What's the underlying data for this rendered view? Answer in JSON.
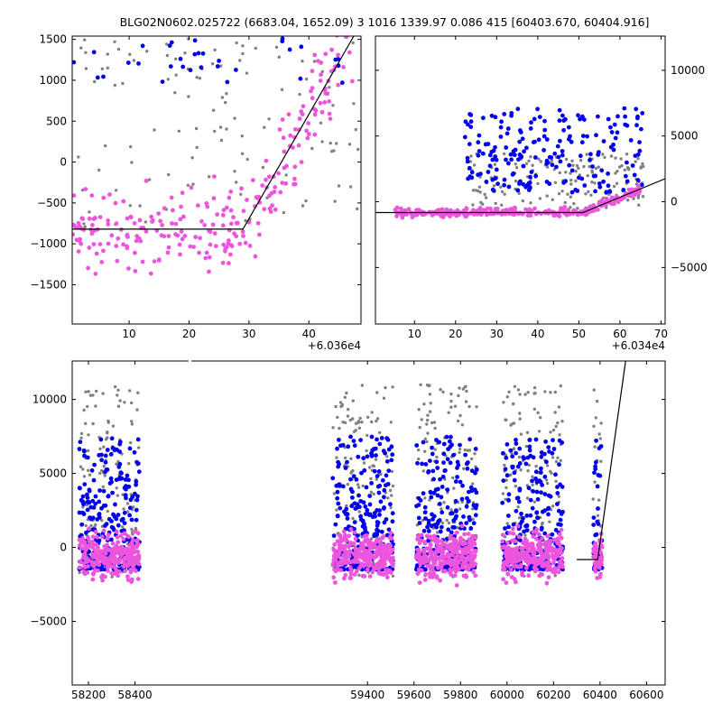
{
  "header": {
    "title": "BLG02N0602.025722 (6683.04, 1652.09)   3 1016 1339.97 0.086 415 [60403.670, 60404.916]"
  },
  "colors": {
    "blue": "#0000ee",
    "gray": "#808080",
    "pink": "#ee55dd",
    "model": "#000000"
  },
  "chart_data": [
    {
      "type": "scatter",
      "panel": "top-left",
      "xlim": [
        0.5,
        48.7
      ],
      "ylim": [
        -1980,
        1540
      ],
      "xticks": [
        10,
        20,
        30,
        40
      ],
      "tick_labels_x": [
        "10",
        "20",
        "30",
        "40"
      ],
      "yticks": [
        -1500,
        -1000,
        -500,
        0,
        500,
        1000,
        1500
      ],
      "tick_labels_y": [
        "−1500",
        "−1000",
        "−500",
        "0",
        "500",
        "1000",
        "1500"
      ],
      "x_offset_label": "+6.036e4",
      "model_line": {
        "x": [
          0.5,
          29,
          47.5
        ],
        "y": [
          -820,
          -820,
          1540
        ]
      },
      "grid": false
    },
    {
      "type": "scatter",
      "panel": "top-right",
      "xlim": [
        0.5,
        71
      ],
      "ylim": [
        -9300,
        12600
      ],
      "xticks": [
        10,
        20,
        30,
        40,
        50,
        60,
        70
      ],
      "tick_labels_x": [
        "10",
        "20",
        "30",
        "40",
        "50",
        "60",
        "70"
      ],
      "yticks": [
        -5000,
        0,
        5000,
        10000
      ],
      "tick_labels_y": [
        "−5000",
        "0",
        "5000",
        "10000"
      ],
      "y_axis_side": "right",
      "x_offset_label": "+6.034e4",
      "model_line": {
        "x": [
          0.5,
          51,
          71
        ],
        "y": [
          -820,
          -820,
          1750
        ]
      },
      "grid": false
    },
    {
      "type": "scatter",
      "panel": "bottom",
      "xlim": [
        58130,
        60680
      ],
      "ylim": [
        -9300,
        12600
      ],
      "xticks": [
        58200,
        58400,
        59400,
        59600,
        59800,
        60000,
        60200,
        60400,
        60600
      ],
      "tick_labels_x": [
        "58200",
        "58400",
        "59400",
        "59600",
        "59800",
        "60000",
        "60200",
        "60400",
        "60600"
      ],
      "yticks": [
        -5000,
        0,
        5000,
        10000
      ],
      "tick_labels_y": [
        "−5000",
        "0",
        "5000",
        "10000"
      ],
      "model_line": {
        "x": [
          60300,
          60390,
          60510
        ],
        "y": [
          -820,
          -820,
          12600
        ]
      },
      "grid": false
    }
  ]
}
